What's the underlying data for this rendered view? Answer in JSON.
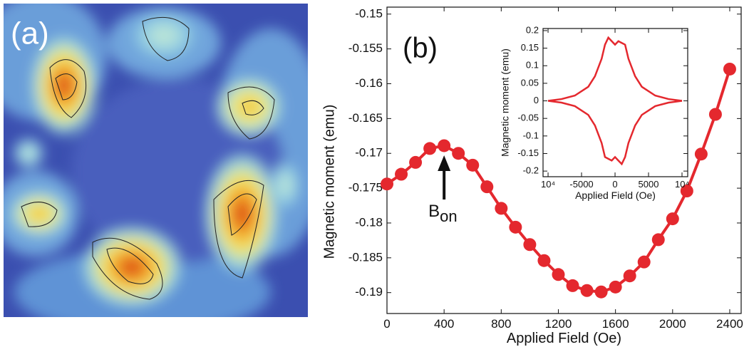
{
  "panel_a": {
    "label": "(a)"
  },
  "chart_data": [
    {
      "type": "line",
      "panel_label": "(b)",
      "xlabel": "Applied Field (Oe)",
      "ylabel": "Magnetic moment (emu)",
      "annotation": {
        "text": "B",
        "subscript": "on"
      },
      "x": [
        0,
        100,
        200,
        300,
        400,
        500,
        600,
        700,
        800,
        900,
        1000,
        1100,
        1200,
        1300,
        1400,
        1500,
        1600,
        1700,
        1800,
        1900,
        2000,
        2100,
        2200,
        2300,
        2400
      ],
      "series": [
        {
          "color": "#e4282e",
          "values": [
            -0.1744,
            -0.173,
            -0.1713,
            -0.1693,
            -0.1689,
            -0.17,
            -0.1717,
            -0.1748,
            -0.1779,
            -0.1806,
            -0.1831,
            -0.1854,
            -0.1874,
            -0.189,
            -0.1897,
            -0.1899,
            -0.1892,
            -0.1876,
            -0.1856,
            -0.1824,
            -0.1794,
            -0.1754,
            -0.1701,
            -0.1644,
            -0.1579
          ]
        }
      ],
      "markers": true,
      "xlim": [
        0,
        2480
      ],
      "ylim": [
        -0.193,
        -0.149
      ],
      "xticks": [
        0,
        400,
        800,
        1200,
        1600,
        2000,
        2400
      ],
      "yticks": [
        -0.15,
        -0.155,
        -0.16,
        -0.165,
        -0.17,
        -0.175,
        -0.18,
        -0.185,
        -0.19
      ]
    },
    {
      "type": "line",
      "xlabel": "Applied Field (Oe)",
      "ylabel": "Magnetic moment (emu)",
      "x": [
        -10000,
        -8000,
        -6000,
        -4000,
        -3000,
        -2000,
        -1500,
        -1000,
        -500,
        0,
        500,
        1000,
        1500,
        2000,
        3000,
        4000,
        6000,
        8000,
        10000
      ],
      "series": [
        {
          "color": "#e4282e",
          "values": [
            0.0,
            0.005,
            0.015,
            0.04,
            0.07,
            0.12,
            0.16,
            0.18,
            0.17,
            0.16,
            0.17,
            0.165,
            0.16,
            0.12,
            0.07,
            0.04,
            0.015,
            0.005,
            0.0
          ]
        },
        {
          "color": "#e4282e",
          "values": [
            0.0,
            -0.005,
            -0.015,
            -0.04,
            -0.07,
            -0.12,
            -0.16,
            -0.165,
            -0.17,
            -0.16,
            -0.17,
            -0.18,
            -0.16,
            -0.12,
            -0.07,
            -0.04,
            -0.015,
            -0.005,
            0.0
          ]
        }
      ],
      "markers": false,
      "xlim": [
        -10750,
        10850
      ],
      "ylim": [
        -0.216,
        0.206
      ],
      "xticks": [
        {
          "value": -10000,
          "label": "10⁴"
        },
        -5000,
        0,
        5000,
        {
          "value": 10000,
          "label": "10⁴"
        }
      ],
      "yticks": [
        0.2,
        0.15,
        0.1,
        0.05,
        0,
        -0.05,
        -0.1,
        -0.15,
        -0.2
      ]
    }
  ]
}
